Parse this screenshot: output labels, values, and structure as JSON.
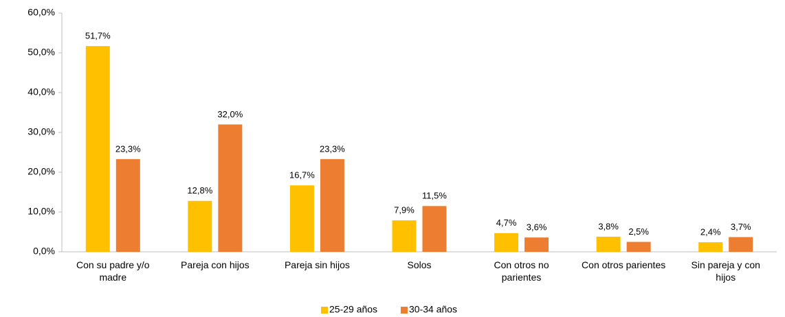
{
  "chart_data": {
    "type": "bar",
    "categories": [
      "Con su padre y/o madre",
      "Pareja con hijos",
      "Pareja sin hijos",
      "Solos",
      "Con otros no parientes",
      "Con otros parientes",
      "Sin pareja y con hijos"
    ],
    "series": [
      {
        "name": "25-29 años",
        "color": "#FFC000",
        "values": [
          51.7,
          12.8,
          16.7,
          7.9,
          4.7,
          3.8,
          2.4
        ],
        "value_labels": [
          "51,7%",
          "12,8%",
          "16,7%",
          "7,9%",
          "4,7%",
          "3,8%",
          "2,4%"
        ]
      },
      {
        "name": "30-34 años",
        "color": "#ED7D31",
        "values": [
          23.3,
          32.0,
          23.3,
          11.5,
          3.6,
          2.5,
          3.7
        ],
        "value_labels": [
          "23,3%",
          "32,0%",
          "23,3%",
          "11,5%",
          "3,6%",
          "2,5%",
          "3,7%"
        ]
      }
    ],
    "ylim": [
      0,
      60
    ],
    "yticks": [
      {
        "value": 0,
        "label": "0,0%"
      },
      {
        "value": 10,
        "label": "10,0%"
      },
      {
        "value": 20,
        "label": "20,0%"
      },
      {
        "value": 30,
        "label": "30,0%"
      },
      {
        "value": 40,
        "label": "40,0%"
      },
      {
        "value": 50,
        "label": "50,0%"
      },
      {
        "value": 60,
        "label": "60,0%"
      }
    ],
    "grid": false,
    "legend": "bottom"
  }
}
